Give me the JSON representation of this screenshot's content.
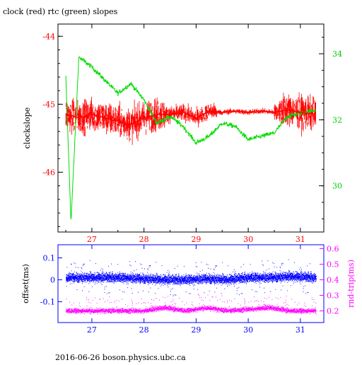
{
  "page": {
    "title": "clock (red) rtc (green) slopes",
    "footer": "2016-06-26 boson.physics.ubc.ca"
  },
  "colors": {
    "clock": "#ff0000",
    "rtc": "#00dd00",
    "offset": "#0000ff",
    "rndtrip": "#ff00ff",
    "axis": "#000000"
  },
  "chart_data": [
    {
      "type": "line",
      "title": "clock (red) rtc (green) slopes",
      "xlabel": "",
      "ylabel": "clockslope",
      "y2label": "",
      "xlim": [
        26.35,
        31.45
      ],
      "ylim": [
        -46.88,
        -43.82
      ],
      "y2lim": [
        28.6,
        34.9
      ],
      "x_ticks": [
        27,
        28,
        29,
        30,
        31
      ],
      "y_ticks": [
        -44,
        -45,
        -46
      ],
      "y2_ticks": [
        30,
        32,
        34
      ],
      "grid": false,
      "series": [
        {
          "name": "clock",
          "axis": "left",
          "x": [
            26.5,
            26.75,
            27.0,
            27.25,
            27.5,
            27.75,
            28.0,
            28.25,
            28.5,
            28.75,
            29.0,
            29.25,
            29.5,
            29.75,
            30.0,
            30.25,
            30.5,
            30.75,
            31.0,
            31.3
          ],
          "values": [
            -45.15,
            -45.2,
            -45.15,
            -45.2,
            -45.25,
            -45.3,
            -45.2,
            -45.15,
            -45.15,
            -45.12,
            -45.2,
            -45.1,
            -45.12,
            -45.1,
            -45.12,
            -45.1,
            -45.12,
            -45.08,
            -45.12,
            -45.15
          ]
        },
        {
          "name": "rtc",
          "axis": "right",
          "x": [
            26.5,
            26.6,
            26.75,
            27.0,
            27.25,
            27.5,
            27.75,
            28.0,
            28.25,
            28.5,
            28.75,
            29.0,
            29.25,
            29.5,
            29.75,
            30.0,
            30.25,
            30.5,
            30.75,
            31.0,
            31.3
          ],
          "values": [
            33.3,
            28.9,
            33.9,
            33.6,
            33.2,
            32.8,
            33.1,
            32.6,
            31.9,
            32.1,
            31.8,
            31.3,
            31.5,
            31.9,
            31.8,
            31.4,
            31.5,
            31.6,
            32.1,
            32.2,
            32.3
          ]
        }
      ]
    },
    {
      "type": "scatter",
      "xlabel": "",
      "ylabel": "offset(ms)",
      "y2label": "rnd-trip(ms)",
      "xlim": [
        26.35,
        31.45
      ],
      "ylim": [
        -0.195,
        0.16
      ],
      "y2lim": [
        0.125,
        0.625
      ],
      "x_ticks": [
        27,
        28,
        29,
        30,
        31
      ],
      "y_ticks": [
        0.1,
        0,
        -0.1
      ],
      "y2_ticks": [
        0.2,
        0.3,
        0.4,
        0.5,
        0.6
      ],
      "grid": false,
      "series": [
        {
          "name": "offset",
          "axis": "left",
          "x": [
            26.5,
            27.0,
            27.5,
            28.0,
            28.4,
            28.8,
            29.2,
            29.6,
            30.0,
            30.4,
            30.8,
            31.3
          ],
          "values": [
            0.01,
            0.01,
            0.01,
            0.005,
            0.0,
            0.0,
            0.005,
            0.0,
            0.01,
            0.01,
            0.015,
            0.01
          ]
        },
        {
          "name": "rnd-trip",
          "axis": "right",
          "x": [
            26.5,
            27.0,
            27.5,
            28.0,
            28.4,
            28.8,
            29.2,
            29.6,
            30.0,
            30.4,
            30.8,
            31.3
          ],
          "values": [
            0.2,
            0.2,
            0.2,
            0.2,
            0.22,
            0.2,
            0.22,
            0.2,
            0.21,
            0.22,
            0.2,
            0.2
          ]
        }
      ]
    }
  ]
}
